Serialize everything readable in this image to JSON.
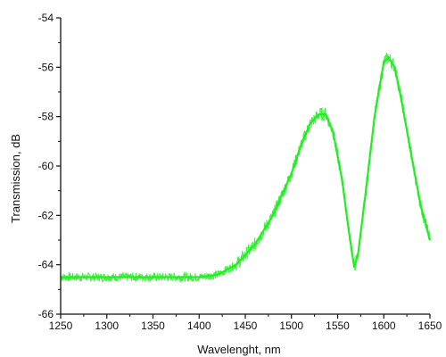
{
  "chart_data": {
    "type": "line",
    "xlabel": "Wavelenght, nm",
    "ylabel": "Transmission, dB",
    "xlim": [
      1250,
      1650
    ],
    "ylim": [
      -66,
      -54
    ],
    "x_ticks": [
      1250,
      1300,
      1350,
      1400,
      1450,
      1500,
      1550,
      1600,
      1650
    ],
    "y_ticks": [
      -66,
      -64,
      -62,
      -60,
      -58,
      -56,
      -54
    ],
    "x_tick_labels": [
      "1250",
      "1300",
      "1350",
      "1400",
      "1450",
      "1500",
      "1550",
      "1600",
      "1650"
    ],
    "y_tick_labels": [
      "-66",
      "-64",
      "-62",
      "-60",
      "-58",
      "-56",
      "-54"
    ],
    "grid": false,
    "series": [
      {
        "color": "#22ee22",
        "x": [
          1250,
          1275,
          1300,
          1325,
          1350,
          1375,
          1400,
          1420,
          1440,
          1460,
          1480,
          1500,
          1510,
          1520,
          1530,
          1537,
          1545,
          1555,
          1562,
          1568,
          1572,
          1580,
          1590,
          1600,
          1605,
          1612,
          1620,
          1630,
          1640,
          1650
        ],
        "y": [
          -64.5,
          -64.5,
          -64.5,
          -64.5,
          -64.5,
          -64.5,
          -64.5,
          -64.4,
          -64.0,
          -63.2,
          -62.0,
          -60.3,
          -59.2,
          -58.3,
          -57.9,
          -57.9,
          -58.6,
          -60.6,
          -62.6,
          -64.1,
          -63.6,
          -61.2,
          -58.0,
          -55.8,
          -55.6,
          -56.0,
          -57.5,
          -59.6,
          -61.6,
          -63.0
        ]
      }
    ]
  }
}
